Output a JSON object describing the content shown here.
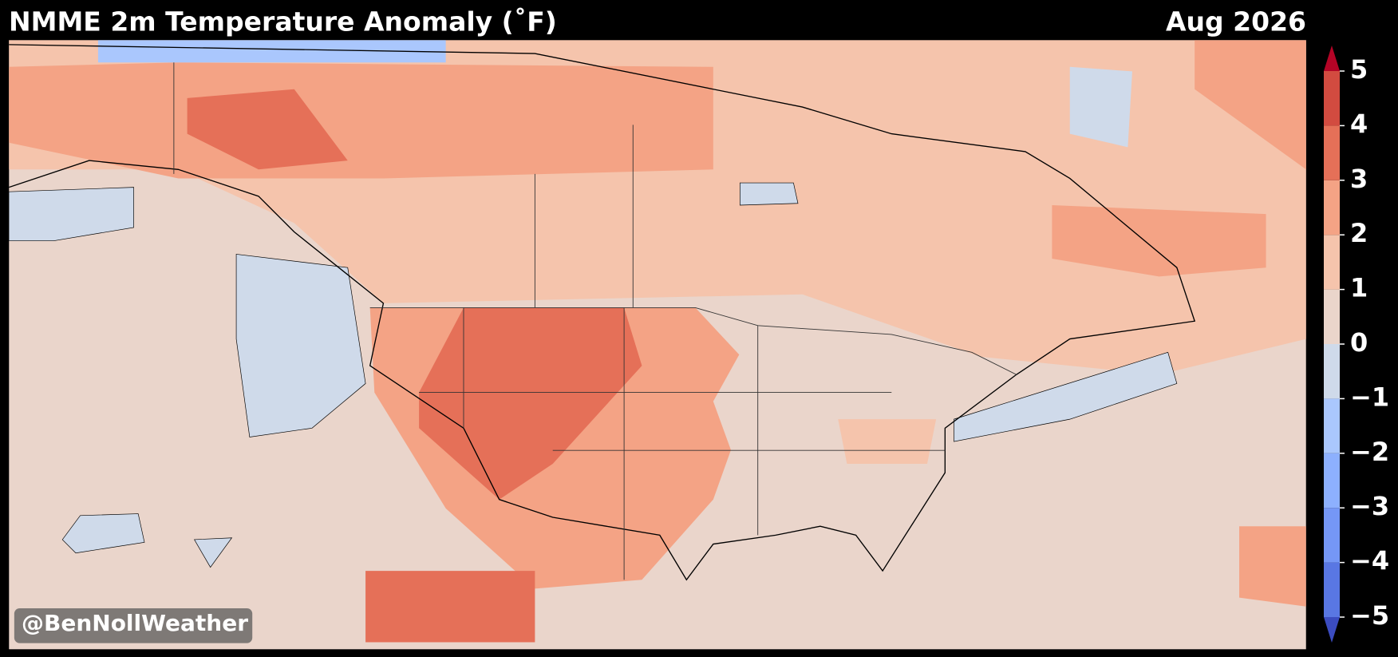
{
  "header": {
    "title": "NMME 2m Temperature Anomaly (˚F)",
    "date": "Aug 2026"
  },
  "colorbar": {
    "ticks": [
      {
        "value": -5,
        "label": "−5"
      },
      {
        "value": -4,
        "label": "−4"
      },
      {
        "value": -3,
        "label": "−3"
      },
      {
        "value": -2,
        "label": "−2"
      },
      {
        "value": -1,
        "label": "−1"
      },
      0,
      1,
      2,
      3,
      4,
      5
    ],
    "colors": [
      "#5977e3",
      "#7597f6",
      "#8db0fe",
      "#aac7fd",
      "#cfdaea",
      "#ead5cb",
      "#f5c4ac",
      "#f4a385",
      "#e57058",
      "#d24b40"
    ],
    "under_color": "#3b4cc0",
    "over_color": "#b40426"
  },
  "watermark": "@BenNollWeather"
}
